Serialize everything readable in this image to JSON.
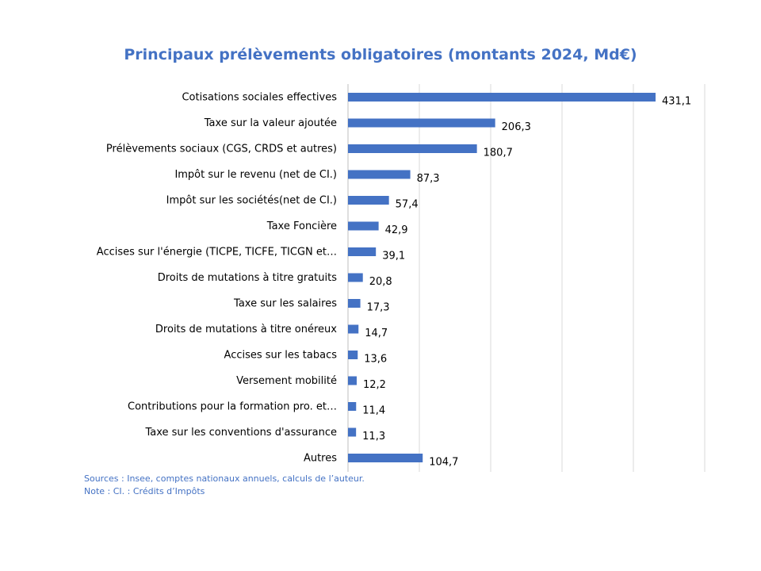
{
  "chart_data": {
    "type": "bar",
    "orientation": "horizontal",
    "title": "Principaux prélèvements obligatoires (montants 2024, Md€)",
    "categories": [
      "Cotisations sociales effectives",
      "Taxe sur la valeur ajoutée",
      "Prélèvements sociaux (CGS, CRDS et autres)",
      "Impôt sur le revenu (net de CI.)",
      "Impôt sur les sociétés(net de CI.)",
      "Taxe Foncière",
      "Accises sur l'énergie (TICPE, TICFE, TICGN et…",
      "Droits de mutations à titre gratuits",
      "Taxe sur les salaires",
      "Droits de mutations à titre onéreux",
      "Accises sur les tabacs",
      "Versement mobilité",
      "Contributions pour la formation pro. et…",
      "Taxe sur les conventions d'assurance",
      "Autres"
    ],
    "values": [
      431.1,
      206.3,
      180.7,
      87.3,
      57.4,
      42.9,
      39.1,
      20.8,
      17.3,
      14.7,
      13.6,
      12.2,
      11.4,
      11.3,
      104.7
    ],
    "value_labels": [
      "431,1",
      "206,3",
      "180,7",
      "87,3",
      "57,4",
      "42,9",
      "39,1",
      "20,8",
      "17,3",
      "14,7",
      "13,6",
      "12,2",
      "11,4",
      "11,3",
      "104,7"
    ],
    "xlim": [
      0,
      500
    ],
    "grid": true,
    "bar_color": "#4472C4"
  },
  "notes": {
    "sources": "Sources : Insee, comptes nationaux annuels, calculs de l’auteur.",
    "note": "Note : CI. : Crédits d’Impôts"
  }
}
